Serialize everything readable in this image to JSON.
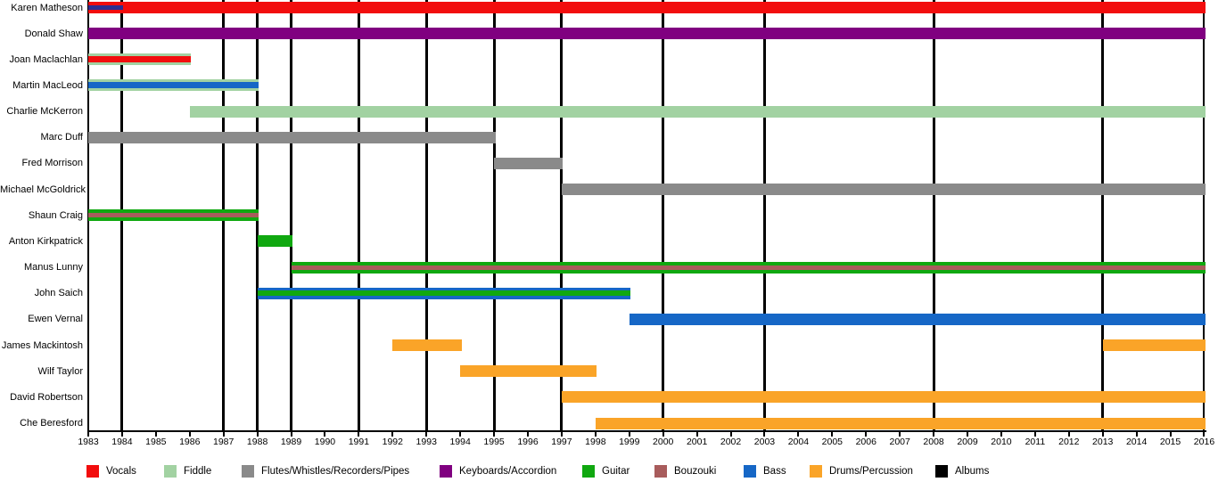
{
  "palette": {
    "vocals": "#F20D0D",
    "fiddle": "#A2D2A2",
    "flutes": "#8A8A8A",
    "keyboards": "#800080",
    "guitar": "#10A810",
    "bouzouki": "#A85C5C",
    "bass": "#1667C6",
    "drums": "#FAA428",
    "albums": "#000000",
    "navy": "#2E2E90"
  },
  "legend": {
    "items": [
      {
        "label": "Vocals",
        "key": "vocals"
      },
      {
        "label": "Fiddle",
        "key": "fiddle"
      },
      {
        "label": "Flutes/Whistles/Recorders/Pipes",
        "key": "flutes"
      },
      {
        "label": "Keyboards/Accordion",
        "key": "keyboards"
      },
      {
        "label": "Guitar",
        "key": "guitar"
      },
      {
        "label": "Bouzouki",
        "key": "bouzouki"
      },
      {
        "label": "Bass",
        "key": "bass"
      },
      {
        "label": "Drums/Percussion",
        "key": "drums"
      },
      {
        "label": "Albums",
        "key": "albums"
      }
    ]
  },
  "chart_data": {
    "type": "bar",
    "subtype": "timeline_gantt_band_members",
    "grid": "vertical black lines mark album years; bars drawn over lines",
    "x_range": [
      1983,
      2016
    ],
    "x_ticks": [
      1983,
      1984,
      1985,
      1986,
      1987,
      1988,
      1989,
      1990,
      1991,
      1992,
      1993,
      1994,
      1995,
      1996,
      1997,
      1998,
      1999,
      2000,
      2001,
      2002,
      2003,
      2004,
      2005,
      2006,
      2007,
      2008,
      2009,
      2010,
      2011,
      2012,
      2013,
      2014,
      2015,
      2016
    ],
    "album_marker_years": [
      1984,
      1987,
      1988,
      1989,
      1991,
      1993,
      1995,
      1997,
      2000,
      2003,
      2008,
      2013
    ],
    "rows": [
      {
        "label": "Karen Matheson",
        "spans": [
          {
            "from": 1983,
            "to": 2016,
            "roles": [
              "Vocals"
            ],
            "layers": [
              [
                "vocals",
                13
              ]
            ]
          },
          {
            "from": 1983,
            "to": 1984,
            "roles": [
              "navy-stripe"
            ],
            "layers": [
              [
                "navy",
                5
              ]
            ]
          }
        ]
      },
      {
        "label": "Donald Shaw",
        "spans": [
          {
            "from": 1983,
            "to": 2016,
            "roles": [
              "Keyboards/Accordion"
            ],
            "layers": [
              [
                "keyboards",
                13
              ]
            ]
          }
        ]
      },
      {
        "label": "Joan Maclachlan",
        "spans": [
          {
            "from": 1983,
            "to": 1986,
            "roles": [
              "Fiddle",
              "Vocals"
            ],
            "layers": [
              [
                "fiddle",
                3
              ],
              [
                "vocals",
                7
              ],
              [
                "fiddle",
                3
              ]
            ]
          }
        ]
      },
      {
        "label": "Martin MacLeod",
        "spans": [
          {
            "from": 1983,
            "to": 1988,
            "roles": [
              "Fiddle",
              "Bass"
            ],
            "layers": [
              [
                "fiddle",
                3
              ],
              [
                "bass",
                7
              ],
              [
                "fiddle",
                3
              ]
            ]
          }
        ]
      },
      {
        "label": "Charlie McKerron",
        "spans": [
          {
            "from": 1986,
            "to": 2016,
            "roles": [
              "Fiddle"
            ],
            "layers": [
              [
                "fiddle",
                13
              ]
            ]
          }
        ]
      },
      {
        "label": "Marc Duff",
        "spans": [
          {
            "from": 1983,
            "to": 1995,
            "roles": [
              "Flutes/Whistles/Recorders/Pipes"
            ],
            "layers": [
              [
                "flutes",
                13
              ]
            ]
          }
        ]
      },
      {
        "label": "Fred Morrison",
        "spans": [
          {
            "from": 1995,
            "to": 1997,
            "roles": [
              "Flutes/Whistles/Recorders/Pipes"
            ],
            "layers": [
              [
                "flutes",
                13
              ]
            ]
          }
        ]
      },
      {
        "label": "Michael McGoldrick",
        "spans": [
          {
            "from": 1997,
            "to": 2016,
            "roles": [
              "Flutes/Whistles/Recorders/Pipes"
            ],
            "layers": [
              [
                "flutes",
                13
              ]
            ]
          }
        ]
      },
      {
        "label": "Shaun Craig",
        "spans": [
          {
            "from": 1983,
            "to": 1988,
            "roles": [
              "Guitar",
              "Bouzouki"
            ],
            "layers": [
              [
                "guitar",
                4
              ],
              [
                "bouzouki",
                5
              ],
              [
                "guitar",
                4
              ]
            ]
          }
        ]
      },
      {
        "label": "Anton Kirkpatrick",
        "spans": [
          {
            "from": 1988,
            "to": 1989,
            "roles": [
              "Guitar"
            ],
            "layers": [
              [
                "guitar",
                13
              ]
            ]
          }
        ]
      },
      {
        "label": "Manus Lunny",
        "spans": [
          {
            "from": 1989,
            "to": 2016,
            "roles": [
              "Guitar",
              "Bouzouki"
            ],
            "layers": [
              [
                "guitar",
                4
              ],
              [
                "bouzouki",
                5
              ],
              [
                "guitar",
                4
              ]
            ]
          }
        ]
      },
      {
        "label": "John Saich",
        "spans": [
          {
            "from": 1988,
            "to": 1999,
            "roles": [
              "Bass",
              "Guitar"
            ],
            "layers": [
              [
                "bass",
                3.5
              ],
              [
                "guitar",
                6
              ],
              [
                "bass",
                3.5
              ]
            ]
          }
        ]
      },
      {
        "label": "Ewen Vernal",
        "spans": [
          {
            "from": 1999,
            "to": 2016,
            "roles": [
              "Bass"
            ],
            "layers": [
              [
                "bass",
                13
              ]
            ]
          }
        ]
      },
      {
        "label": "James Mackintosh",
        "spans": [
          {
            "from": 1992,
            "to": 1994,
            "roles": [
              "Drums/Percussion"
            ],
            "layers": [
              [
                "drums",
                13
              ]
            ]
          },
          {
            "from": 2013,
            "to": 2016,
            "roles": [
              "Drums/Percussion"
            ],
            "layers": [
              [
                "drums",
                13
              ]
            ]
          }
        ]
      },
      {
        "label": "Wilf Taylor",
        "spans": [
          {
            "from": 1994,
            "to": 1998,
            "roles": [
              "Drums/Percussion"
            ],
            "layers": [
              [
                "drums",
                13
              ]
            ]
          }
        ]
      },
      {
        "label": "David Robertson",
        "spans": [
          {
            "from": 1997,
            "to": 2016,
            "roles": [
              "Drums/Percussion"
            ],
            "layers": [
              [
                "drums",
                13
              ]
            ]
          }
        ]
      },
      {
        "label": "Che Beresford",
        "spans": [
          {
            "from": 1998,
            "to": 2016,
            "roles": [
              "Drums/Percussion"
            ],
            "layers": [
              [
                "drums",
                13
              ]
            ]
          }
        ]
      }
    ]
  }
}
